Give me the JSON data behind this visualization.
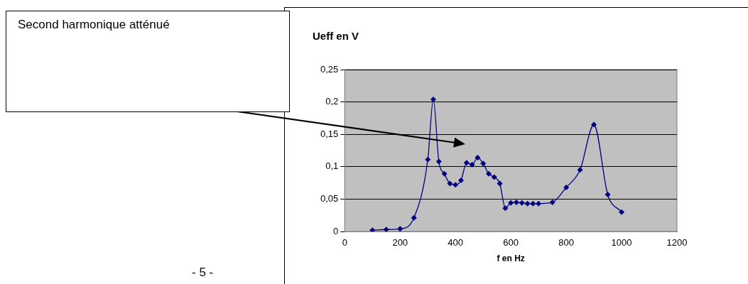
{
  "chart_data": {
    "type": "line",
    "ylabel": "Ueff en V",
    "xlabel": "f en Hz",
    "x": [
      100,
      150,
      200,
      250,
      300,
      320,
      340,
      360,
      380,
      400,
      420,
      440,
      460,
      480,
      500,
      520,
      540,
      560,
      580,
      600,
      620,
      640,
      660,
      680,
      700,
      750,
      800,
      850,
      900,
      950,
      1000
    ],
    "series": [
      {
        "color": "#000080",
        "values": [
          0.002,
          0.003,
          0.004,
          0.021,
          0.111,
          0.204,
          0.108,
          0.089,
          0.074,
          0.072,
          0.079,
          0.106,
          0.103,
          0.114,
          0.105,
          0.089,
          0.084,
          0.074,
          0.036,
          0.044,
          0.045,
          0.044,
          0.043,
          0.043,
          0.043,
          0.045,
          0.068,
          0.095,
          0.165,
          0.057,
          0.03
        ]
      }
    ],
    "xlim": [
      0,
      1200
    ],
    "xticks": [
      0,
      200,
      400,
      600,
      800,
      1000,
      1200
    ],
    "ylim": [
      0,
      0.25
    ],
    "yticks": [
      {
        "value": 0,
        "label": "0"
      },
      {
        "value": 0.05,
        "label": "0,05"
      },
      {
        "value": 0.1,
        "label": "0,1"
      },
      {
        "value": 0.15,
        "label": "0,15"
      },
      {
        "value": 0.2,
        "label": "0,2"
      },
      {
        "value": 0.25,
        "label": "0,25"
      }
    ],
    "grid": "y",
    "legend": false,
    "marker": "diamond",
    "line_style": "solid",
    "annotations": [
      "Second harmonique atténué",
      "- 5 -"
    ]
  }
}
